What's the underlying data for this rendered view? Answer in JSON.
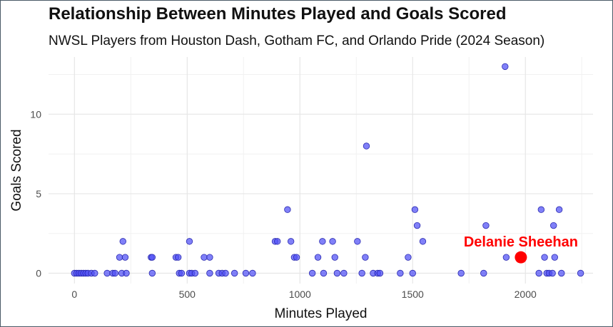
{
  "chart_data": {
    "type": "scatter",
    "title": "Relationship Between Minutes Played and Goals Scored",
    "subtitle": "NWSL Players from Houston Dash, Gotham FC, and Orlando Pride (2024 Season)",
    "xlabel": "Minutes Played",
    "ylabel": "Goals Scored",
    "xlim": [
      -115,
      2300
    ],
    "ylim": [
      -0.65,
      13.6
    ],
    "x_ticks": [
      0,
      500,
      1000,
      1500,
      2000
    ],
    "y_ticks": [
      0,
      5,
      10
    ],
    "x_tick_labels": [
      "0",
      "500",
      "1000",
      "1500",
      "2000"
    ],
    "y_tick_labels": [
      "0",
      "5",
      "10"
    ],
    "grid": true,
    "point_color": "#4f4ff5",
    "highlight_color": "#ff0000",
    "points": [
      {
        "x": 0,
        "y": 0
      },
      {
        "x": 10,
        "y": 0
      },
      {
        "x": 20,
        "y": 0
      },
      {
        "x": 30,
        "y": 0
      },
      {
        "x": 40,
        "y": 0
      },
      {
        "x": 50,
        "y": 0
      },
      {
        "x": 60,
        "y": 0
      },
      {
        "x": 75,
        "y": 0
      },
      {
        "x": 90,
        "y": 0
      },
      {
        "x": 145,
        "y": 0
      },
      {
        "x": 170,
        "y": 0
      },
      {
        "x": 180,
        "y": 0
      },
      {
        "x": 200,
        "y": 1
      },
      {
        "x": 210,
        "y": 0
      },
      {
        "x": 215,
        "y": 2
      },
      {
        "x": 225,
        "y": 1
      },
      {
        "x": 230,
        "y": 0
      },
      {
        "x": 340,
        "y": 1
      },
      {
        "x": 345,
        "y": 1
      },
      {
        "x": 345,
        "y": 0
      },
      {
        "x": 450,
        "y": 1
      },
      {
        "x": 460,
        "y": 1
      },
      {
        "x": 465,
        "y": 0
      },
      {
        "x": 475,
        "y": 0
      },
      {
        "x": 510,
        "y": 2
      },
      {
        "x": 510,
        "y": 0
      },
      {
        "x": 520,
        "y": 0
      },
      {
        "x": 535,
        "y": 0
      },
      {
        "x": 575,
        "y": 1
      },
      {
        "x": 600,
        "y": 1
      },
      {
        "x": 600,
        "y": 0
      },
      {
        "x": 640,
        "y": 0
      },
      {
        "x": 655,
        "y": 0
      },
      {
        "x": 670,
        "y": 0
      },
      {
        "x": 710,
        "y": 0
      },
      {
        "x": 760,
        "y": 0
      },
      {
        "x": 790,
        "y": 0
      },
      {
        "x": 890,
        "y": 2
      },
      {
        "x": 900,
        "y": 2
      },
      {
        "x": 945,
        "y": 4
      },
      {
        "x": 960,
        "y": 2
      },
      {
        "x": 975,
        "y": 1
      },
      {
        "x": 985,
        "y": 1
      },
      {
        "x": 1055,
        "y": 0
      },
      {
        "x": 1080,
        "y": 1
      },
      {
        "x": 1100,
        "y": 2
      },
      {
        "x": 1105,
        "y": 0
      },
      {
        "x": 1145,
        "y": 2
      },
      {
        "x": 1155,
        "y": 1
      },
      {
        "x": 1165,
        "y": 0
      },
      {
        "x": 1195,
        "y": 0
      },
      {
        "x": 1255,
        "y": 2
      },
      {
        "x": 1275,
        "y": 0
      },
      {
        "x": 1290,
        "y": 1
      },
      {
        "x": 1295,
        "y": 8
      },
      {
        "x": 1325,
        "y": 0
      },
      {
        "x": 1345,
        "y": 0
      },
      {
        "x": 1355,
        "y": 0
      },
      {
        "x": 1445,
        "y": 0
      },
      {
        "x": 1480,
        "y": 1
      },
      {
        "x": 1500,
        "y": 0
      },
      {
        "x": 1510,
        "y": 4
      },
      {
        "x": 1520,
        "y": 3
      },
      {
        "x": 1545,
        "y": 2
      },
      {
        "x": 1715,
        "y": 0
      },
      {
        "x": 1815,
        "y": 0
      },
      {
        "x": 1825,
        "y": 3
      },
      {
        "x": 1910,
        "y": 13
      },
      {
        "x": 1915,
        "y": 1
      },
      {
        "x": 2060,
        "y": 0
      },
      {
        "x": 2070,
        "y": 4
      },
      {
        "x": 2085,
        "y": 1
      },
      {
        "x": 2095,
        "y": 0
      },
      {
        "x": 2105,
        "y": 0
      },
      {
        "x": 2120,
        "y": 0
      },
      {
        "x": 2125,
        "y": 3
      },
      {
        "x": 2130,
        "y": 1
      },
      {
        "x": 2150,
        "y": 4
      },
      {
        "x": 2160,
        "y": 0
      },
      {
        "x": 2245,
        "y": 0
      }
    ],
    "highlight": {
      "label": "Delanie Sheehan",
      "x": 1980,
      "y": 1
    }
  }
}
